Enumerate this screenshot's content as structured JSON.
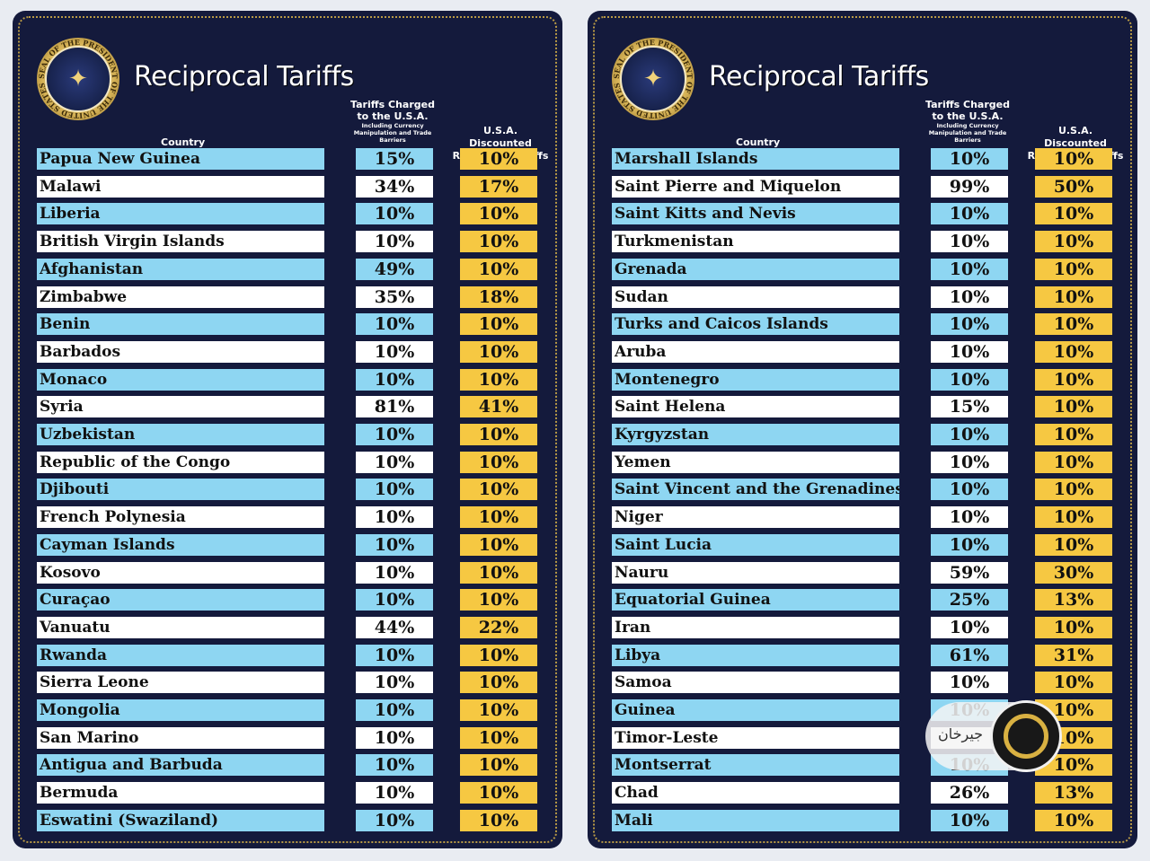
{
  "panels": [
    {
      "title": "Reciprocal Tariffs",
      "seal_text": "SEAL OF THE PRESIDENT OF THE UNITED STATES",
      "headers": {
        "country": "Country",
        "charged_main": "Tariffs Charged to the U.S.A.",
        "charged_sub": "Including Currency Manipulation and Trade Barriers",
        "discounted": "U.S.A. Discounted Reciprocal Tariffs"
      },
      "rows": [
        {
          "country": "Papua New Guinea",
          "charged": "15%",
          "discounted": "10%"
        },
        {
          "country": "Malawi",
          "charged": "34%",
          "discounted": "17%"
        },
        {
          "country": "Liberia",
          "charged": "10%",
          "discounted": "10%"
        },
        {
          "country": "British Virgin Islands",
          "charged": "10%",
          "discounted": "10%"
        },
        {
          "country": "Afghanistan",
          "charged": "49%",
          "discounted": "10%"
        },
        {
          "country": "Zimbabwe",
          "charged": "35%",
          "discounted": "18%"
        },
        {
          "country": "Benin",
          "charged": "10%",
          "discounted": "10%"
        },
        {
          "country": "Barbados",
          "charged": "10%",
          "discounted": "10%"
        },
        {
          "country": "Monaco",
          "charged": "10%",
          "discounted": "10%"
        },
        {
          "country": "Syria",
          "charged": "81%",
          "discounted": "41%"
        },
        {
          "country": "Uzbekistan",
          "charged": "10%",
          "discounted": "10%"
        },
        {
          "country": "Republic of the Congo",
          "charged": "10%",
          "discounted": "10%"
        },
        {
          "country": "Djibouti",
          "charged": "10%",
          "discounted": "10%"
        },
        {
          "country": "French Polynesia",
          "charged": "10%",
          "discounted": "10%"
        },
        {
          "country": "Cayman Islands",
          "charged": "10%",
          "discounted": "10%"
        },
        {
          "country": "Kosovo",
          "charged": "10%",
          "discounted": "10%"
        },
        {
          "country": "Curaçao",
          "charged": "10%",
          "discounted": "10%"
        },
        {
          "country": "Vanuatu",
          "charged": "44%",
          "discounted": "22%"
        },
        {
          "country": "Rwanda",
          "charged": "10%",
          "discounted": "10%"
        },
        {
          "country": "Sierra Leone",
          "charged": "10%",
          "discounted": "10%"
        },
        {
          "country": "Mongolia",
          "charged": "10%",
          "discounted": "10%"
        },
        {
          "country": "San Marino",
          "charged": "10%",
          "discounted": "10%"
        },
        {
          "country": "Antigua and Barbuda",
          "charged": "10%",
          "discounted": "10%"
        },
        {
          "country": "Bermuda",
          "charged": "10%",
          "discounted": "10%"
        },
        {
          "country": "Eswatini (Swaziland)",
          "charged": "10%",
          "discounted": "10%"
        }
      ]
    },
    {
      "title": "Reciprocal Tariffs",
      "seal_text": "SEAL OF THE PRESIDENT OF THE UNITED STATES",
      "headers": {
        "country": "Country",
        "charged_main": "Tariffs Charged to the U.S.A.",
        "charged_sub": "Including Currency Manipulation and Trade Barriers",
        "discounted": "U.S.A. Discounted Reciprocal Tariffs"
      },
      "rows": [
        {
          "country": "Marshall Islands",
          "charged": "10%",
          "discounted": "10%"
        },
        {
          "country": "Saint Pierre and Miquelon",
          "charged": "99%",
          "discounted": "50%"
        },
        {
          "country": "Saint Kitts and Nevis",
          "charged": "10%",
          "discounted": "10%"
        },
        {
          "country": "Turkmenistan",
          "charged": "10%",
          "discounted": "10%"
        },
        {
          "country": "Grenada",
          "charged": "10%",
          "discounted": "10%"
        },
        {
          "country": "Sudan",
          "charged": "10%",
          "discounted": "10%"
        },
        {
          "country": "Turks and Caicos Islands",
          "charged": "10%",
          "discounted": "10%"
        },
        {
          "country": "Aruba",
          "charged": "10%",
          "discounted": "10%"
        },
        {
          "country": "Montenegro",
          "charged": "10%",
          "discounted": "10%"
        },
        {
          "country": "Saint Helena",
          "charged": "15%",
          "discounted": "10%"
        },
        {
          "country": "Kyrgyzstan",
          "charged": "10%",
          "discounted": "10%"
        },
        {
          "country": "Yemen",
          "charged": "10%",
          "discounted": "10%"
        },
        {
          "country": "Saint Vincent and the Grenadines",
          "charged": "10%",
          "discounted": "10%"
        },
        {
          "country": "Niger",
          "charged": "10%",
          "discounted": "10%"
        },
        {
          "country": "Saint Lucia",
          "charged": "10%",
          "discounted": "10%"
        },
        {
          "country": "Nauru",
          "charged": "59%",
          "discounted": "30%"
        },
        {
          "country": "Equatorial Guinea",
          "charged": "25%",
          "discounted": "13%"
        },
        {
          "country": "Iran",
          "charged": "10%",
          "discounted": "10%"
        },
        {
          "country": "Libya",
          "charged": "61%",
          "discounted": "31%"
        },
        {
          "country": "Samoa",
          "charged": "10%",
          "discounted": "10%"
        },
        {
          "country": "Guinea",
          "charged": "10%",
          "discounted": "10%"
        },
        {
          "country": "Timor-Leste",
          "charged": "",
          "discounted": "10%"
        },
        {
          "country": "Montserrat",
          "charged": "10%",
          "discounted": "10%"
        },
        {
          "country": "Chad",
          "charged": "26%",
          "discounted": "13%"
        },
        {
          "country": "Mali",
          "charged": "10%",
          "discounted": "10%"
        }
      ]
    }
  ],
  "watermark": {
    "text": "جیرخان"
  },
  "colors": {
    "background_panel": "#141a3c",
    "row_blue": "#8ed6f2",
    "row_white": "#ffffff",
    "discount_yellow": "#f6c842",
    "border_gold": "#b99a45"
  }
}
